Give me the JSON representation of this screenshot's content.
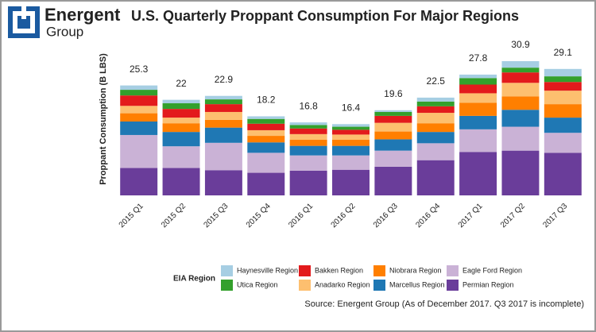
{
  "logo": {
    "line1": "Energent",
    "line2": "Group"
  },
  "chart_data": {
    "type": "stacked-bar",
    "title": "U.S. Quarterly Proppant Consumption For Major Regions",
    "y_label": "Proppant Consumption (B LBS)",
    "legend_title": "EIA Region",
    "source": "Source: Energent Group (As of December 2017. Q3 2017 is incomplete)",
    "categories": [
      "2015 Q1",
      "2015 Q2",
      "2015 Q3",
      "2015 Q4",
      "2016 Q1",
      "2016 Q2",
      "2016 Q3",
      "2016 Q4",
      "2017 Q1",
      "2017 Q2",
      "2017 Q3"
    ],
    "totals": [
      25.3,
      22,
      22.9,
      18.2,
      16.8,
      16.4,
      19.6,
      22.5,
      27.8,
      30.9,
      29.1
    ],
    "ylim": [
      0,
      34
    ],
    "series": [
      {
        "name": "Permian Region",
        "color": "#6a3d9a",
        "values": [
          6.3,
          6.3,
          5.8,
          5.2,
          5.7,
          5.9,
          6.6,
          8.1,
          10.0,
          10.3,
          9.8
        ]
      },
      {
        "name": "Eagle Ford Region",
        "color": "#cab2d6",
        "values": [
          7.6,
          5.0,
          6.3,
          4.6,
          3.5,
          3.3,
          3.7,
          3.9,
          5.2,
          5.5,
          4.6
        ]
      },
      {
        "name": "Marcellus Region",
        "color": "#1f78b4",
        "values": [
          3.1,
          3.3,
          3.5,
          2.4,
          2.2,
          2.2,
          2.6,
          2.6,
          3.1,
          3.9,
          3.5
        ]
      },
      {
        "name": "Niobrara Region",
        "color": "#ff7f00",
        "values": [
          1.9,
          2.0,
          1.8,
          1.5,
          1.4,
          1.4,
          1.8,
          2.0,
          3.0,
          3.1,
          3.1
        ]
      },
      {
        "name": "Anadarko Region",
        "color": "#fdbf6f",
        "values": [
          1.7,
          1.3,
          1.8,
          1.3,
          1.3,
          1.2,
          2.0,
          2.4,
          2.2,
          3.1,
          3.1
        ]
      },
      {
        "name": "Bakken Region",
        "color": "#e31a1c",
        "values": [
          2.4,
          2.0,
          1.8,
          1.5,
          1.3,
          1.1,
          1.6,
          1.5,
          2.0,
          2.4,
          2.0
        ]
      },
      {
        "name": "Utica Region",
        "color": "#33a02c",
        "values": [
          1.3,
          1.3,
          1.1,
          1.1,
          0.8,
          0.7,
          0.9,
          1.1,
          1.5,
          1.1,
          1.3
        ]
      },
      {
        "name": "Haynesville Region",
        "color": "#a6cee3",
        "values": [
          1.0,
          0.8,
          0.8,
          0.6,
          0.6,
          0.6,
          0.4,
          0.9,
          0.8,
          1.5,
          1.7
        ]
      }
    ]
  }
}
